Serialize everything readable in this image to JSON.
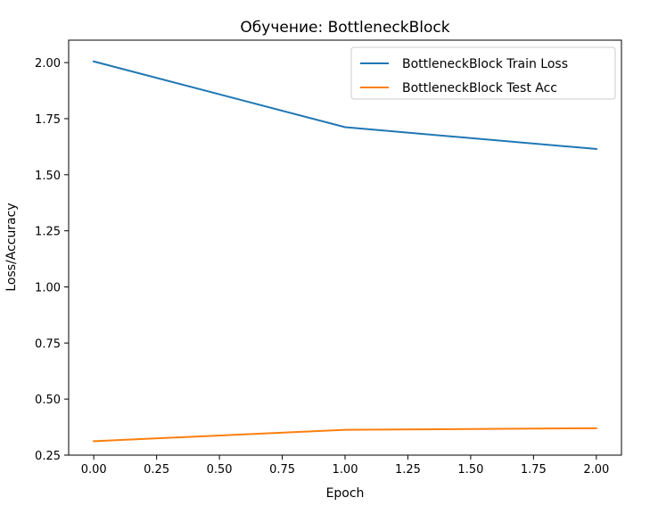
{
  "chart_data": {
    "type": "line",
    "title": "Обучение: BottleneckBlock",
    "xlabel": "Epoch",
    "ylabel": "Loss/Accuracy",
    "x": [
      0,
      1,
      2
    ],
    "xlim": [
      -0.1,
      2.1
    ],
    "ylim": [
      0.25,
      2.1
    ],
    "x_ticks": [
      "0.00",
      "0.25",
      "0.50",
      "0.75",
      "1.00",
      "1.25",
      "1.50",
      "1.75",
      "2.00"
    ],
    "x_tick_values": [
      0,
      0.25,
      0.5,
      0.75,
      1.0,
      1.25,
      1.5,
      1.75,
      2.0
    ],
    "y_ticks": [
      "0.25",
      "0.50",
      "0.75",
      "1.00",
      "1.25",
      "1.50",
      "1.75",
      "2.00"
    ],
    "y_tick_values": [
      0.25,
      0.5,
      0.75,
      1.0,
      1.25,
      1.5,
      1.75,
      2.0
    ],
    "grid": false,
    "legend_position": "top-right",
    "series": [
      {
        "name": "BottleneckBlock Train Loss",
        "color": "#1f77b4",
        "values": [
          2.005,
          1.712,
          1.615
        ]
      },
      {
        "name": "BottleneckBlock Test Acc",
        "color": "#ff7f0e",
        "values": [
          0.312,
          0.363,
          0.37
        ]
      }
    ]
  }
}
